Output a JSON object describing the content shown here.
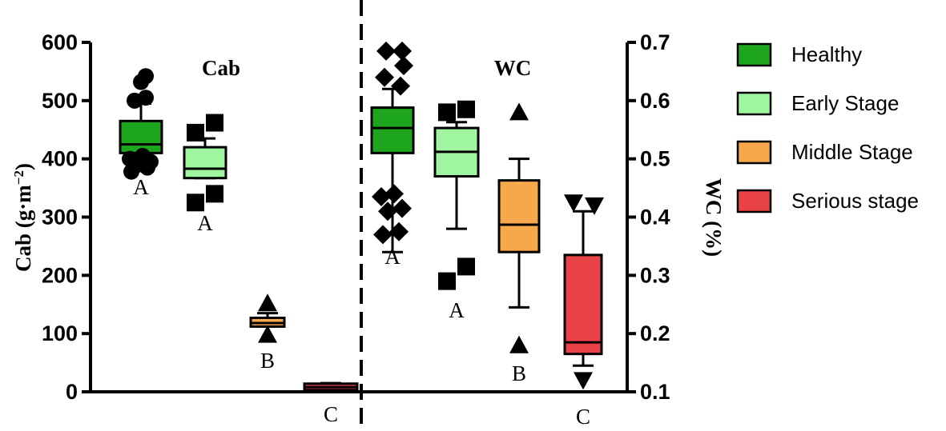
{
  "chart_data": [
    {
      "type": "box",
      "title": "Cab",
      "ylabel_parts": [
        "Cab (g·m",
        "−2",
        ")"
      ],
      "ylim": [
        0,
        600
      ],
      "yticks": [
        0,
        100,
        200,
        300,
        400,
        500,
        600
      ],
      "grid": false,
      "series": [
        {
          "name": "Healthy",
          "color": "#1ea51e",
          "whisker_low": 410,
          "q1": 410,
          "median": 425,
          "q3": 465,
          "whisker_high": 495,
          "outliers": [
            378,
            385,
            390,
            395,
            400,
            405,
            500,
            505,
            532,
            542
          ],
          "marker": "circle",
          "letter": "A"
        },
        {
          "name": "Early Stage",
          "color": "#a0f5a0",
          "whisker_low": 367,
          "q1": 367,
          "median": 383,
          "q3": 420,
          "whisker_high": 435,
          "outliers": [
            325,
            340,
            445,
            462
          ],
          "marker": "square",
          "letter": "A"
        },
        {
          "name": "Middle Stage",
          "color": "#f7a84a",
          "whisker_low": 112,
          "q1": 112,
          "median": 118,
          "q3": 127,
          "whisker_high": 135,
          "outliers": [
            98,
            152
          ],
          "marker": "triangle-up",
          "letter": "B"
        },
        {
          "name": "Serious stage",
          "color": "#e84246",
          "whisker_low": 3,
          "q1": 3,
          "median": 8,
          "q3": 14,
          "whisker_high": 15,
          "outliers": [],
          "marker": "triangle-down",
          "letter": "C"
        }
      ]
    },
    {
      "type": "box",
      "title": "WC",
      "ylabel_parts": [
        "WC (%)"
      ],
      "ylim": [
        0.1,
        0.7
      ],
      "yticks": [
        0.1,
        0.2,
        0.3,
        0.4,
        0.5,
        0.6,
        0.7
      ],
      "yticklabels": [
        "0.1",
        "0.2",
        "0.3",
        "0.4",
        "0.5",
        "0.6",
        "0.7"
      ],
      "grid": false,
      "series": [
        {
          "name": "Healthy",
          "color": "#1ea51e",
          "whisker_low": 0.34,
          "q1": 0.51,
          "median": 0.553,
          "q3": 0.588,
          "whisker_high": 0.62,
          "outliers": [
            0.37,
            0.375,
            0.41,
            0.415,
            0.435,
            0.44,
            0.625,
            0.64,
            0.66,
            0.685,
            0.685
          ],
          "marker": "diamond",
          "letter": "A"
        },
        {
          "name": "Early Stage",
          "color": "#a0f5a0",
          "whisker_low": 0.38,
          "q1": 0.47,
          "median": 0.512,
          "q3": 0.553,
          "whisker_high": 0.563,
          "outliers": [
            0.29,
            0.315,
            0.58,
            0.585
          ],
          "marker": "square",
          "letter": "A"
        },
        {
          "name": "Middle Stage",
          "color": "#f7a84a",
          "whisker_low": 0.245,
          "q1": 0.34,
          "median": 0.387,
          "q3": 0.463,
          "whisker_high": 0.5,
          "outliers": [
            0.18,
            0.58
          ],
          "marker": "triangle-up",
          "letter": "B"
        },
        {
          "name": "Serious stage",
          "color": "#e84246",
          "whisker_low": 0.145,
          "q1": 0.165,
          "median": 0.185,
          "q3": 0.335,
          "whisker_high": 0.41,
          "outliers": [
            0.12,
            0.425,
            0.42
          ],
          "marker": "triangle-down",
          "letter": "C"
        }
      ]
    }
  ],
  "legend": {
    "placement": "right",
    "items": [
      {
        "label": "Healthy",
        "color": "#1ea51e"
      },
      {
        "label": "Early Stage",
        "color": "#a0f5a0"
      },
      {
        "label": "Middle Stage",
        "color": "#f7a84a"
      },
      {
        "label": "Serious stage",
        "color": "#e84246"
      }
    ]
  }
}
